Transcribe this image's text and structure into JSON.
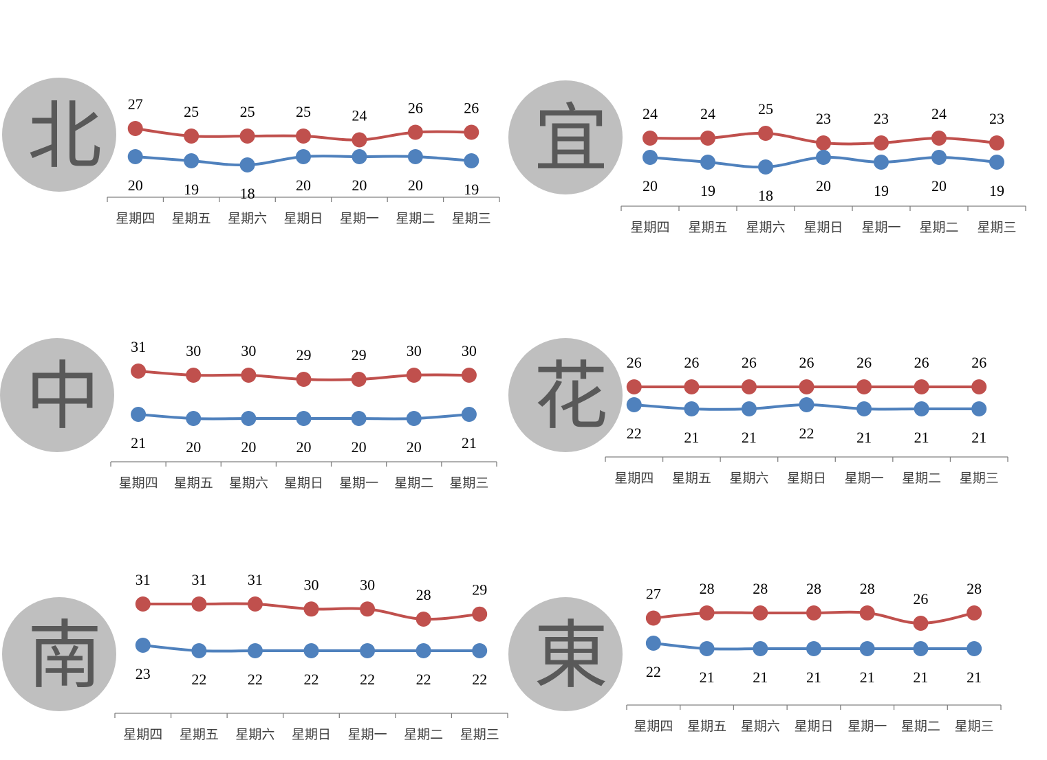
{
  "colors": {
    "high": "#c0504d",
    "low": "#4f81bd",
    "circle": "#bfbfbf",
    "char": "#595959"
  },
  "chart_data": [
    {
      "type": "line",
      "region": "北",
      "categories": [
        "星期四",
        "星期五",
        "星期六",
        "星期日",
        "星期一",
        "星期二",
        "星期三"
      ],
      "series": [
        {
          "values": [
            27,
            25,
            25,
            25,
            24,
            26,
            26
          ]
        },
        {
          "values": [
            20,
            19,
            18,
            20,
            20,
            20,
            19
          ]
        }
      ]
    },
    {
      "type": "line",
      "region": "宜",
      "categories": [
        "星期四",
        "星期五",
        "星期六",
        "星期日",
        "星期一",
        "星期二",
        "星期三"
      ],
      "series": [
        {
          "values": [
            24,
            24,
            25,
            23,
            23,
            24,
            23
          ]
        },
        {
          "values": [
            20,
            19,
            18,
            20,
            19,
            20,
            19
          ]
        }
      ]
    },
    {
      "type": "line",
      "region": "中",
      "categories": [
        "星期四",
        "星期五",
        "星期六",
        "星期日",
        "星期一",
        "星期二",
        "星期三"
      ],
      "series": [
        {
          "values": [
            31,
            30,
            30,
            29,
            29,
            30,
            30
          ]
        },
        {
          "values": [
            21,
            20,
            20,
            20,
            20,
            20,
            21
          ]
        }
      ]
    },
    {
      "type": "line",
      "region": "花",
      "categories": [
        "星期四",
        "星期五",
        "星期六",
        "星期日",
        "星期一",
        "星期二",
        "星期三"
      ],
      "series": [
        {
          "values": [
            26,
            26,
            26,
            26,
            26,
            26,
            26
          ]
        },
        {
          "values": [
            22,
            21,
            21,
            22,
            21,
            21,
            21
          ]
        }
      ]
    },
    {
      "type": "line",
      "region": "南",
      "categories": [
        "星期四",
        "星期五",
        "星期六",
        "星期日",
        "星期一",
        "星期二",
        "星期三"
      ],
      "series": [
        {
          "values": [
            31,
            31,
            31,
            30,
            30,
            28,
            29
          ]
        },
        {
          "values": [
            23,
            22,
            22,
            22,
            22,
            22,
            22
          ]
        }
      ]
    },
    {
      "type": "line",
      "region": "東",
      "categories": [
        "星期四",
        "星期五",
        "星期六",
        "星期日",
        "星期一",
        "星期二",
        "星期三"
      ],
      "series": [
        {
          "values": [
            27,
            28,
            28,
            28,
            28,
            26,
            28
          ]
        },
        {
          "values": [
            22,
            21,
            21,
            21,
            21,
            21,
            21
          ]
        }
      ]
    }
  ]
}
